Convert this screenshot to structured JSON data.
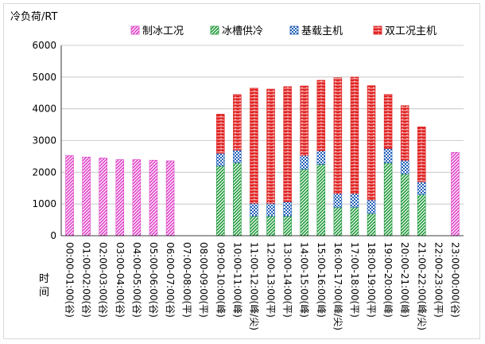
{
  "chart_data": {
    "type": "bar",
    "stacked": true,
    "ylabel": "冷负荷/RT",
    "xlabel": "时间",
    "ylim": [
      0,
      6000
    ],
    "yticks": [
      0,
      1000,
      2000,
      3000,
      4000,
      5000,
      6000
    ],
    "grid": true,
    "legend_position": "top",
    "categories": [
      "00:00-01:00(谷)",
      "01:00-02:00(谷)",
      "02:00-03:00(谷)",
      "03:00-04:00(谷)",
      "04:00-05:00(谷)",
      "05:00-06:00(谷)",
      "06:00-07:00(谷)",
      "07:00-08:00(平)",
      "08:00-09:00(平)",
      "09:00-10:00(峰)",
      "10:00-11:00(峰)",
      "11:00-12:00(峰/尖)",
      "12:00-13:00(平)",
      "13:00-14:00(平)",
      "14:00-15:00(峰)",
      "15:00-16:00(峰)",
      "16:00-17:00(峰/尖)",
      "17:00-18:00(平)",
      "18:00-19:00(平)",
      "19:00-20:00(峰)",
      "20:00-21:00(峰)",
      "21:00-22:00(峰/尖)",
      "22:00-23:00(平)",
      "23:00-00:00(谷)"
    ],
    "series": [
      {
        "name": "制冰工况",
        "color": "#e040c8",
        "pattern": "diag",
        "values": [
          2530,
          2480,
          2450,
          2400,
          2400,
          2380,
          2360,
          0,
          0,
          0,
          0,
          0,
          0,
          0,
          0,
          0,
          0,
          0,
          0,
          0,
          0,
          0,
          0,
          2630
        ]
      },
      {
        "name": "冰槽供冷",
        "color": "#1f9a3a",
        "pattern": "diag",
        "values": [
          0,
          0,
          0,
          0,
          0,
          0,
          0,
          0,
          0,
          2200,
          2300,
          620,
          620,
          620,
          2100,
          2250,
          900,
          900,
          700,
          2300,
          1950,
          1300,
          0,
          0
        ]
      },
      {
        "name": "基载主机",
        "color": "#1f5fb8",
        "pattern": "check",
        "values": [
          0,
          0,
          0,
          0,
          0,
          0,
          0,
          0,
          0,
          400,
          400,
          400,
          400,
          450,
          430,
          430,
          430,
          430,
          430,
          450,
          430,
          400,
          0,
          0
        ]
      },
      {
        "name": "双工况主机",
        "color": "#e02020",
        "pattern": "brick",
        "values": [
          0,
          0,
          0,
          0,
          0,
          0,
          0,
          0,
          0,
          1230,
          1750,
          3630,
          3600,
          3630,
          2190,
          2220,
          3650,
          3670,
          3600,
          1710,
          1720,
          1730,
          0,
          0
        ]
      }
    ]
  }
}
